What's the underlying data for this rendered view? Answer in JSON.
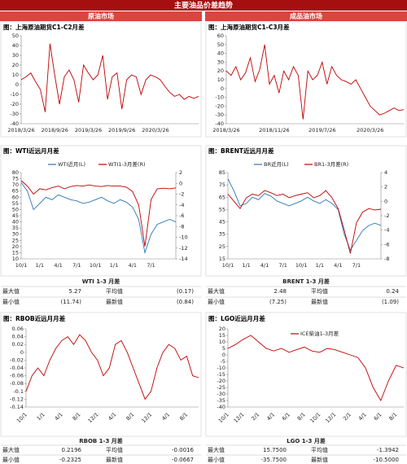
{
  "header": {
    "title": "主要油品价差趋势",
    "left": "原油市场",
    "right": "成品油市场"
  },
  "chart_data": [
    {
      "type": "line",
      "title": "图：上海原油期货C1-C2月差",
      "categories": [
        "2018/3/26",
        null,
        null,
        null,
        null,
        null,
        null,
        "2018/9/26",
        null,
        null,
        null,
        null,
        null,
        null,
        "2019/3/26",
        null,
        null,
        null,
        null,
        null,
        null,
        "2019/9/26",
        null,
        null,
        null,
        null,
        null,
        null,
        "2020/3/26",
        null,
        null,
        null,
        null,
        null,
        null,
        null,
        null,
        null
      ],
      "values": [
        5,
        8,
        12,
        3,
        -5,
        -28,
        42,
        10,
        -20,
        8,
        15,
        5,
        -18,
        20,
        12,
        5,
        10,
        30,
        -15,
        8,
        12,
        -25,
        5,
        10,
        8,
        -10,
        5,
        10,
        8,
        5,
        -2,
        -8,
        -12,
        -10,
        -15,
        -12,
        -14,
        -12
      ],
      "color": "#c00000",
      "ylim": [
        -40,
        50
      ],
      "yticks": [
        50,
        40,
        30,
        20,
        10,
        0,
        -10,
        -20,
        -30,
        -40
      ]
    },
    {
      "type": "line",
      "title": "图：上海原油期货C1-C3月差",
      "categories": [
        "2018/3/26",
        null,
        null,
        null,
        null,
        null,
        null,
        null,
        null,
        null,
        "2018/11/26",
        null,
        null,
        null,
        null,
        null,
        null,
        null,
        null,
        null,
        "2019/7/26",
        null,
        null,
        null,
        null,
        null,
        null,
        null,
        null,
        null,
        "2020/3/26",
        null,
        null,
        null,
        null,
        null,
        null,
        null
      ],
      "values": [
        20,
        15,
        25,
        10,
        18,
        35,
        8,
        22,
        50,
        5,
        15,
        -5,
        20,
        10,
        25,
        15,
        -35,
        20,
        10,
        15,
        30,
        5,
        25,
        15,
        10,
        8,
        5,
        10,
        0,
        -10,
        -20,
        -25,
        -30,
        -28,
        -25,
        -22,
        -25,
        -24
      ],
      "color": "#c00000",
      "ylim": [
        -40,
        60
      ],
      "yticks": [
        60,
        50,
        40,
        30,
        20,
        10,
        0,
        -10,
        -20,
        -30,
        -40
      ]
    },
    {
      "type": "line",
      "title": "图：WTI近远月月差",
      "categories": [
        "10/1",
        null,
        null,
        "1/1",
        null,
        null,
        "4/1",
        null,
        null,
        "7/1",
        null,
        null,
        "10/1",
        null,
        null,
        "1/1",
        null,
        null,
        "4/1",
        null,
        null,
        "7/1",
        null,
        null,
        null,
        null
      ],
      "series": [
        {
          "name": "WTI近月(L)",
          "color": "#2e75b6",
          "values": [
            72,
            65,
            50,
            55,
            60,
            58,
            62,
            60,
            58,
            57,
            55,
            56,
            58,
            60,
            57,
            55,
            58,
            56,
            52,
            42,
            15,
            30,
            38,
            40,
            42,
            40
          ]
        },
        {
          "name": "WTI1-3月差(R)",
          "color": "#c00000",
          "axis": "y2",
          "values": [
            0.5,
            -0.5,
            -2,
            -1,
            -1.2,
            -0.8,
            -0.5,
            -1,
            -0.6,
            -0.4,
            -0.5,
            -0.3,
            -0.5,
            -0.6,
            -0.4,
            -0.5,
            -0.5,
            -0.7,
            -1.5,
            -4,
            -11.7,
            -3,
            -1,
            -0.9,
            -1,
            -0.84
          ]
        }
      ],
      "ylim": [
        10,
        80
      ],
      "yticks": [
        80,
        75,
        70,
        65,
        60,
        55,
        50,
        45,
        40,
        35,
        30,
        25,
        20,
        15,
        10
      ],
      "y2lim": [
        -14,
        2
      ],
      "y2ticks": [
        2,
        0,
        -2,
        -4,
        -6,
        -8,
        -10,
        -12,
        -14
      ],
      "legend": "top"
    },
    {
      "type": "line",
      "title": "图：BRENT近远月月差",
      "categories": [
        "10/1",
        null,
        null,
        "1/1",
        null,
        null,
        "4/1",
        null,
        null,
        "7/1",
        null,
        null,
        "10/1",
        null,
        null,
        "1/1",
        null,
        null,
        "4/1",
        null,
        null,
        "7/1",
        null,
        null,
        null,
        null
      ],
      "series": [
        {
          "name": "BR近月(L)",
          "color": "#2e75b6",
          "values": [
            80,
            70,
            58,
            60,
            65,
            63,
            68,
            66,
            62,
            60,
            58,
            60,
            62,
            65,
            62,
            60,
            63,
            60,
            55,
            35,
            22,
            30,
            38,
            42,
            44,
            42
          ]
        },
        {
          "name": "BR1-3月差(R)",
          "color": "#c00000",
          "axis": "y2",
          "values": [
            1,
            0,
            -1,
            0.5,
            1,
            0.8,
            1.5,
            1.2,
            0.8,
            1,
            0.5,
            0.8,
            1,
            1.2,
            0.5,
            0.8,
            1.5,
            0.5,
            -1,
            -4,
            -7.25,
            -3,
            -1.5,
            -1,
            -1.2,
            -1.09
          ]
        }
      ],
      "ylim": [
        15,
        85
      ],
      "yticks": [
        85,
        75,
        65,
        55,
        45,
        35,
        25,
        15
      ],
      "y2lim": [
        -8,
        4
      ],
      "y2ticks": [
        4,
        2,
        0,
        -2,
        -4,
        -6,
        -8
      ],
      "legend": "top"
    },
    {
      "type": "line",
      "title": "图：RBOB近远月月差",
      "categories": [
        "10/1",
        null,
        null,
        "1/1",
        null,
        null,
        "4/1",
        null,
        null,
        "8/1",
        null,
        null,
        "12/1",
        null,
        null,
        "4/1",
        null,
        null,
        "8/1",
        null,
        null,
        "12/1",
        null,
        null,
        "4/1",
        null,
        null,
        "8/1",
        null,
        null
      ],
      "values": [
        -0.1,
        -0.06,
        -0.04,
        -0.06,
        -0.02,
        0.01,
        0.03,
        0.04,
        0.02,
        0.045,
        0.03,
        0,
        -0.02,
        -0.06,
        -0.04,
        0.02,
        0.03,
        0,
        -0.04,
        -0.08,
        -0.12,
        -0.1,
        -0.04,
        0,
        0.02,
        0.01,
        -0.02,
        -0.01,
        -0.06,
        -0.065
      ],
      "color": "#c00000",
      "ylim": [
        -0.14,
        0.06
      ],
      "yticks": [
        0.06,
        0.04,
        0.02,
        0,
        -0.02,
        -0.04,
        -0.06,
        -0.08,
        -0.1,
        -0.12,
        -0.14
      ]
    },
    {
      "type": "line",
      "title": "图：LGO近远月月差",
      "categories": [
        "10/1",
        null,
        "12/1",
        null,
        "2/1",
        null,
        "4/1",
        null,
        "6/1",
        null,
        "8/1",
        null,
        "10/1",
        null,
        "12/1",
        null,
        "2/1",
        null,
        "4/1",
        null,
        "6/1",
        null,
        "8/1",
        null
      ],
      "series": [
        {
          "name": "ICE柴油1-3月差",
          "color": "#c00000",
          "values": [
            5,
            8,
            12,
            15,
            10,
            5,
            3,
            5,
            2,
            4,
            6,
            3,
            2,
            5,
            4,
            2,
            0,
            -2,
            -10,
            -25,
            -35,
            -20,
            -8,
            -10
          ]
        }
      ],
      "ylim": [
        -40,
        20
      ],
      "yticks": [
        20,
        15,
        10,
        5,
        0,
        -5,
        -10,
        -15,
        -20,
        -25,
        -30,
        -35,
        -40
      ],
      "legend": "top"
    }
  ],
  "tables": [
    {
      "title": "WTI 1-3 月差",
      "rows": [
        [
          "最大值",
          "5.27",
          "平均值",
          "(0.17)"
        ],
        [
          "最小值",
          "(11.74)",
          "最新值",
          "(0.84)"
        ]
      ]
    },
    {
      "title": "BRENT 1-3 月差",
      "rows": [
        [
          "最大值",
          "2.48",
          "平均值",
          "0.24"
        ],
        [
          "最小值",
          "(7.25)",
          "最新值",
          "(1.09)"
        ]
      ]
    },
    {
      "title": "RBOB 1-3 月差",
      "rows": [
        [
          "最大值",
          "0.2196",
          "平均值",
          "-0.0016"
        ],
        [
          "最小值",
          "-0.2325",
          "最新值",
          "-0.0667"
        ]
      ]
    },
    {
      "title": "LGO 1-3 月差",
      "rows": [
        [
          "最大值",
          "15.7500",
          "平均值",
          "-1.3942"
        ],
        [
          "最小值",
          "-35.7500",
          "最新值",
          "-10.5000"
        ]
      ]
    }
  ]
}
